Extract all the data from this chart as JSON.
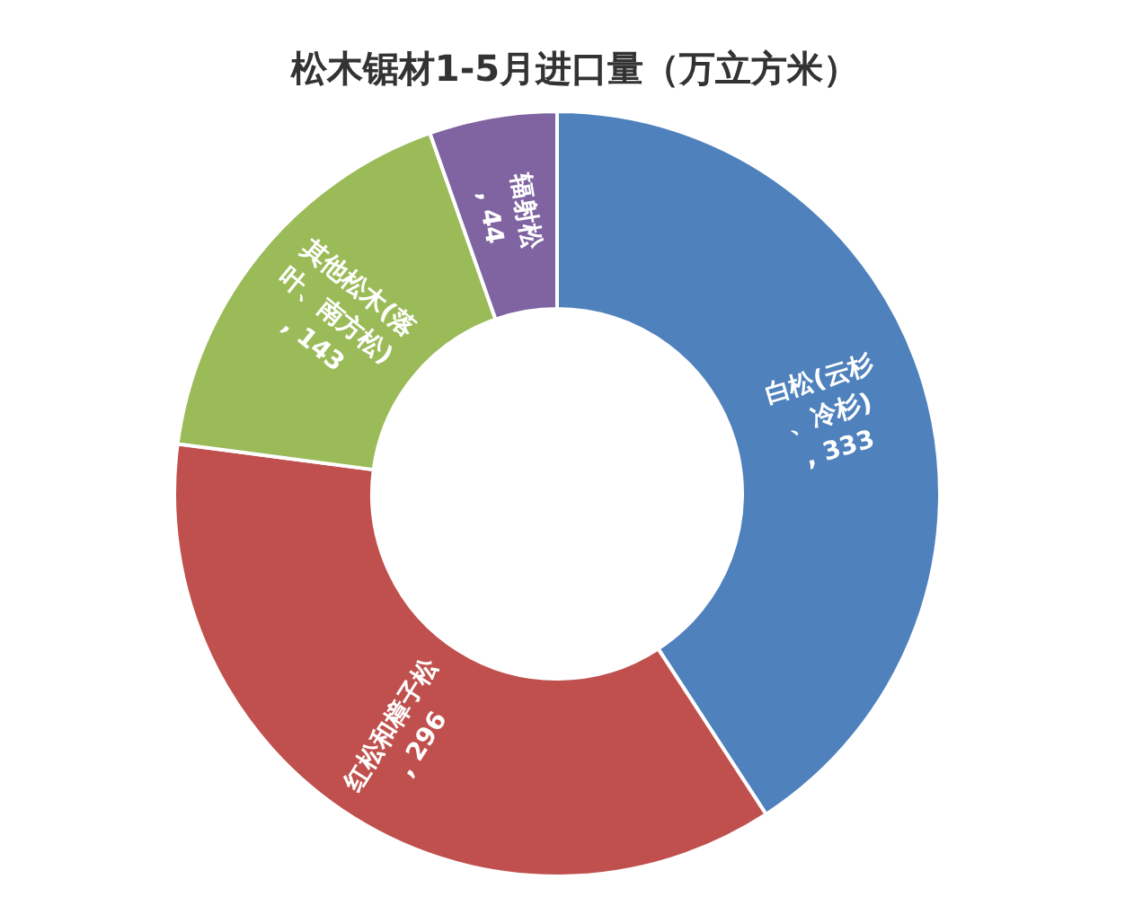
{
  "chart_data": {
    "type": "donut",
    "title": "松木锯材1-5月进口量（万立方米）",
    "categories": [
      "白松(云杉、冷杉)",
      "红松和樟子松",
      "其他松木(落叶、南方松)",
      "辐射松"
    ],
    "values": [
      333,
      296,
      143,
      44
    ],
    "colors": [
      "#4f81bd",
      "#c0504d",
      "#9bbb59",
      "#8064a2"
    ],
    "value_labels": [
      ", 333",
      ", 296",
      ", 143",
      ", 44"
    ]
  }
}
